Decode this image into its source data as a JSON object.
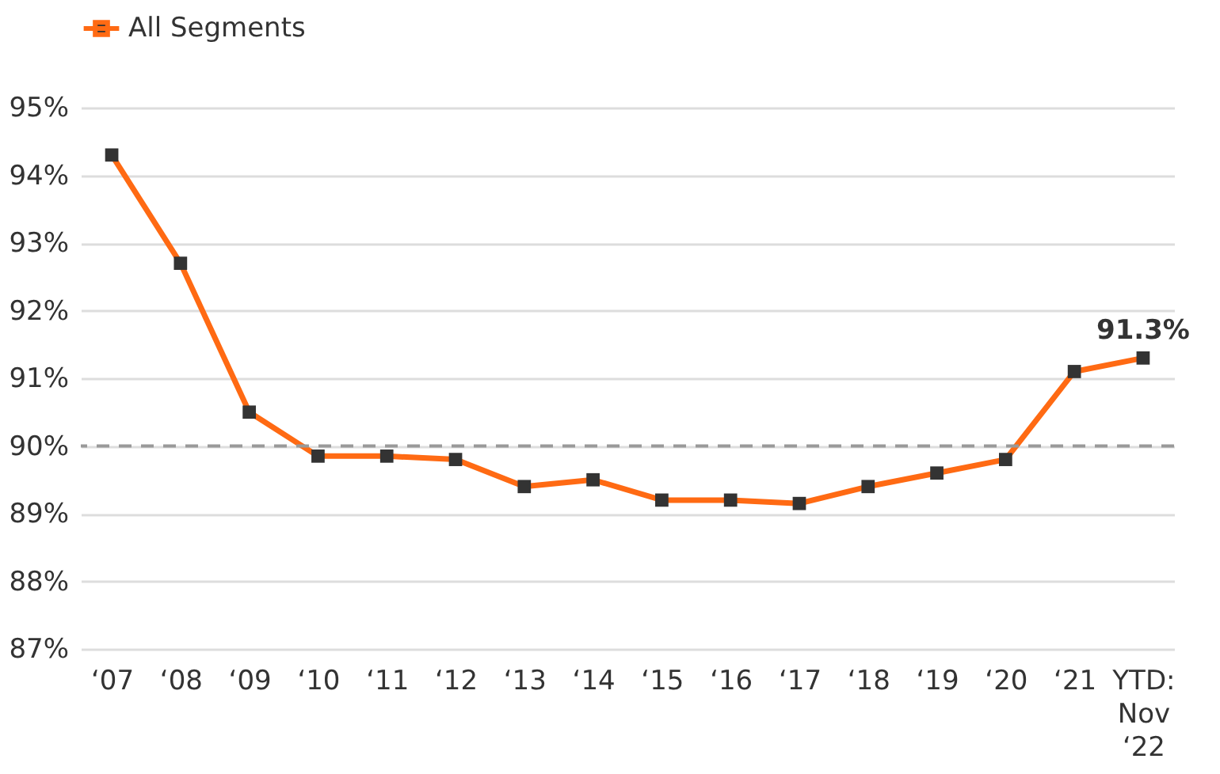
{
  "chart_data": {
    "type": "line",
    "categories": [
      "‘07",
      "‘08",
      "‘09",
      "‘10",
      "‘11",
      "‘12",
      "‘13",
      "‘14",
      "‘15",
      "‘16",
      "‘17",
      "‘18",
      "‘19",
      "‘20",
      "‘21",
      "YTD: Nov ‘22"
    ],
    "series": [
      {
        "name": "All Segments",
        "color": "#ff6a13",
        "values": [
          94.3,
          92.7,
          90.5,
          89.85,
          89.85,
          89.8,
          89.4,
          89.5,
          89.2,
          89.2,
          89.15,
          89.4,
          89.6,
          89.8,
          91.1,
          91.3
        ],
        "value_labels": [
          null,
          null,
          null,
          null,
          null,
          null,
          null,
          null,
          null,
          null,
          null,
          null,
          null,
          null,
          null,
          "91.3%"
        ]
      }
    ],
    "ylim": [
      87,
      95
    ],
    "yticks": [
      {
        "value": 87,
        "label": "87%"
      },
      {
        "value": 88,
        "label": "88%"
      },
      {
        "value": 89,
        "label": "89%"
      },
      {
        "value": 90,
        "label": "90%"
      },
      {
        "value": 91,
        "label": "91%"
      },
      {
        "value": 92,
        "label": "92%"
      },
      {
        "value": 93,
        "label": "93%"
      },
      {
        "value": 94,
        "label": "94%"
      },
      {
        "value": 95,
        "label": "95%"
      }
    ],
    "ref_lines": [
      {
        "axis": "y",
        "value": 90,
        "color": "#999999",
        "line_style": "dashed"
      }
    ],
    "grid": "y",
    "legend": "top left",
    "marker": "square",
    "line_style": "solid"
  }
}
